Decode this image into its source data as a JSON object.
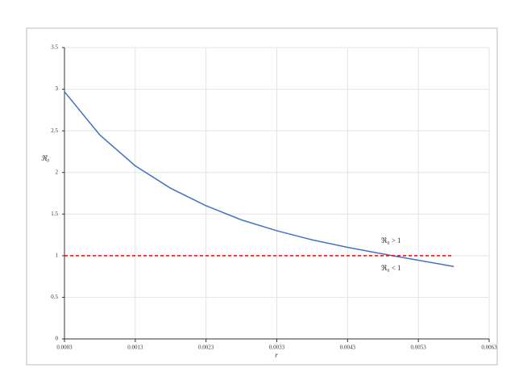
{
  "chart_data": {
    "type": "line",
    "x_label": "r",
    "y_label": "ℜ₀",
    "series": [
      {
        "color": "#4472c4",
        "dash": false,
        "x": [
          0.0003,
          0.0008,
          0.0013,
          0.0018,
          0.0023,
          0.0028,
          0.0033,
          0.0038,
          0.0043,
          0.0048,
          0.0053,
          0.0058
        ],
        "values": [
          2.97,
          2.45,
          2.08,
          1.81,
          1.6,
          1.43,
          1.3,
          1.19,
          1.1,
          1.02,
          0.945,
          0.87
        ]
      },
      {
        "color": "#ff0000",
        "dash": true,
        "x": [
          0.0003,
          0.0058
        ],
        "values": [
          1,
          1
        ]
      }
    ],
    "annotations": [
      "ℜ₀ > 1",
      "ℜ₀ < 1"
    ],
    "xlim": [
      0.0003,
      0.0063
    ],
    "xticks": [
      0.0003,
      0.0013,
      0.0023,
      0.0033,
      0.0043,
      0.0053,
      0.0063
    ],
    "ylim": [
      0,
      3.5
    ],
    "yticks": [
      0,
      0.5,
      1,
      1.5,
      2,
      2.5,
      3,
      3.5
    ],
    "grid": true
  }
}
